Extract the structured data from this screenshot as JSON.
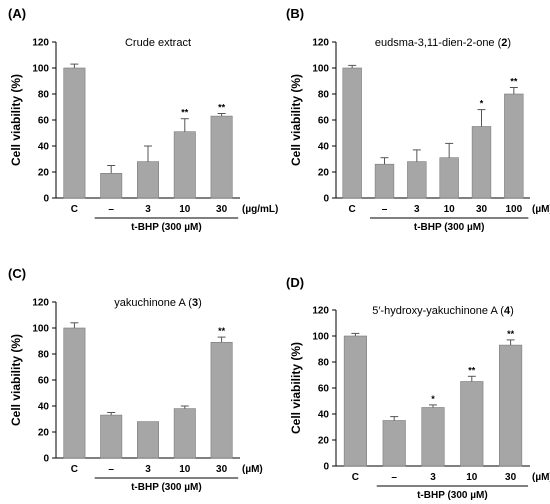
{
  "chart_data": [
    {
      "type": "bar",
      "panel_label": "(A)",
      "title": "Crude extract",
      "title_compound_number": "",
      "ylabel": "Cell viability (%)",
      "ylim": [
        0,
        120
      ],
      "yticks": [
        "0",
        "20",
        "40",
        "60",
        "80",
        "100",
        "120"
      ],
      "categories": [
        "C",
        "–",
        "3",
        "10",
        "30"
      ],
      "values": [
        100,
        19,
        28,
        51,
        63
      ],
      "errors": [
        3,
        6,
        12,
        10,
        2
      ],
      "significance": [
        "",
        "",
        "",
        "**",
        "**"
      ],
      "unit": "(µg/mL)",
      "treatment_label": "t-BHP (300 µM)",
      "bar_color": "#a6a6a6"
    },
    {
      "type": "bar",
      "panel_label": "(B)",
      "title": "eudsma-3,11-dien-2-one (",
      "title_compound_number": "2",
      "title_suffix": ")",
      "ylabel": "Cell viability (%)",
      "ylim": [
        0,
        120
      ],
      "yticks": [
        "0",
        "20",
        "40",
        "60",
        "80",
        "100",
        "120"
      ],
      "categories": [
        "C",
        "–",
        "3",
        "10",
        "30",
        "100"
      ],
      "values": [
        100,
        26,
        28,
        31,
        55,
        80
      ],
      "errors": [
        2,
        5,
        9,
        11,
        13,
        5
      ],
      "significance": [
        "",
        "",
        "",
        "",
        "*",
        "**"
      ],
      "unit": "(µM)",
      "treatment_label": "t-BHP (300 µM)",
      "bar_color": "#a6a6a6"
    },
    {
      "type": "bar",
      "panel_label": "(C)",
      "title": "yakuchinone A (",
      "title_compound_number": "3",
      "title_suffix": ")",
      "ylabel": "Cell viability (%)",
      "ylim": [
        0,
        120
      ],
      "yticks": [
        "0",
        "20",
        "40",
        "60",
        "80",
        "100",
        "120"
      ],
      "categories": [
        "C",
        "–",
        "3",
        "10",
        "30"
      ],
      "values": [
        100,
        33,
        28,
        38,
        89
      ],
      "errors": [
        4,
        2,
        0,
        2,
        4
      ],
      "significance": [
        "",
        "",
        "",
        "",
        "**"
      ],
      "unit": "(µM)",
      "treatment_label": "t-BHP (300 µM)",
      "bar_color": "#a6a6a6"
    },
    {
      "type": "bar",
      "panel_label": "(D)",
      "title": "5′-hydroxy-yakuchinone A (",
      "title_compound_number": "4",
      "title_suffix": ")",
      "ylabel": "Cell viability (%)",
      "ylim": [
        0,
        120
      ],
      "yticks": [
        "0",
        "20",
        "40",
        "60",
        "80",
        "100",
        "120"
      ],
      "categories": [
        "C",
        "–",
        "3",
        "10",
        "30"
      ],
      "values": [
        100,
        35,
        45,
        65,
        93
      ],
      "errors": [
        2,
        3,
        2,
        4,
        4
      ],
      "significance": [
        "",
        "",
        "*",
        "**",
        "**"
      ],
      "unit": "(µM)",
      "treatment_label": "t-BHP (300 µM)",
      "bar_color": "#a6a6a6"
    }
  ]
}
